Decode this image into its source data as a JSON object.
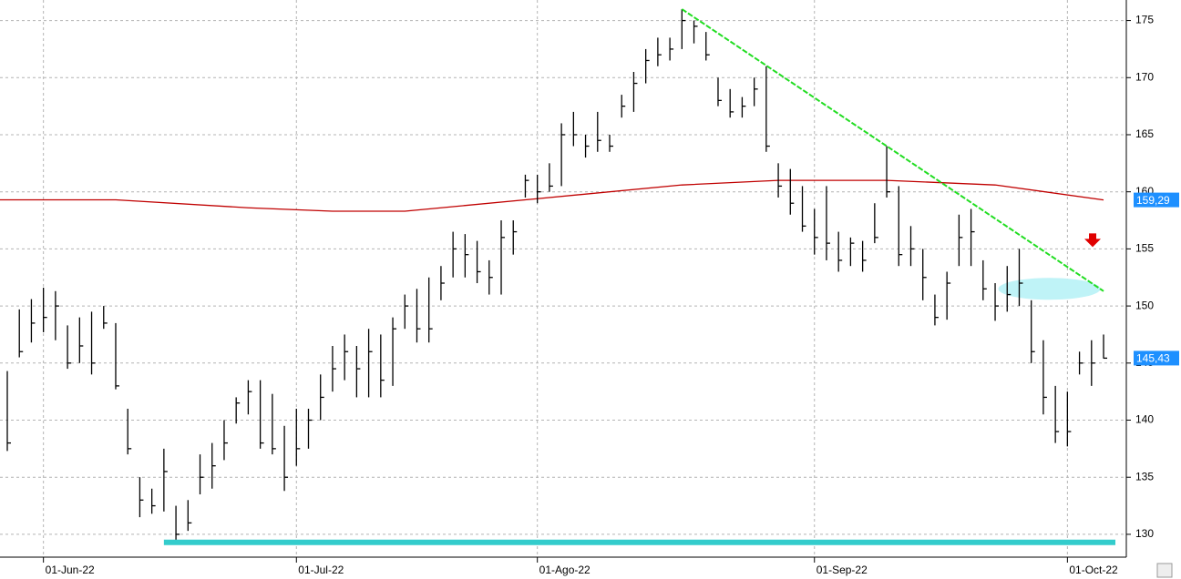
{
  "chart_data": {
    "type": "ohlc",
    "categories": [
      null,
      null,
      null,
      "01-Jun-22",
      null,
      null,
      null,
      null,
      null,
      null,
      null,
      null,
      null,
      null,
      null,
      null,
      null,
      null,
      null,
      null,
      null,
      null,
      null,
      null,
      "01-Jul-22",
      null,
      null,
      null,
      null,
      null,
      null,
      null,
      null,
      null,
      null,
      null,
      null,
      null,
      null,
      null,
      null,
      null,
      null,
      null,
      "01-Ago-22",
      null,
      null,
      null,
      null,
      null,
      null,
      null,
      null,
      null,
      null,
      null,
      null,
      null,
      null,
      null,
      null,
      null,
      null,
      null,
      null,
      null,
      null,
      "01-Sep-22",
      null,
      null,
      null,
      null,
      null,
      null,
      null,
      null,
      null,
      null,
      null,
      null,
      null,
      null,
      null,
      null,
      null,
      null,
      null,
      null,
      "01-Oct-22",
      null,
      null,
      null
    ],
    "high": [
      144.3,
      149.7,
      150.6,
      151.6,
      151.3,
      148.3,
      149,
      149.5,
      150,
      148.5,
      141,
      135,
      134,
      137.5,
      132.5,
      133,
      137,
      138,
      140,
      142,
      143.5,
      143.5,
      142.3,
      139.5,
      141,
      141,
      144,
      146.5,
      147.5,
      146.5,
      148,
      147.5,
      149,
      151,
      151.5,
      152.5,
      153.5,
      156.5,
      156.3,
      155.7,
      154,
      157.5,
      157.5,
      161.5,
      161.5,
      162.5,
      166,
      167,
      165,
      167,
      165,
      168.5,
      170.5,
      172.5,
      173.5,
      173.5,
      176,
      175,
      174,
      170,
      169,
      168.3,
      170,
      171,
      162.5,
      162,
      160.5,
      158.5,
      160.5,
      156.5,
      156,
      155.7,
      159,
      164,
      160.5,
      157,
      155,
      151,
      153,
      158,
      158.5,
      154,
      152,
      153.5,
      155,
      150.5,
      147,
      143,
      142.5,
      146,
      147,
      147.5
    ],
    "low": [
      137.3,
      145.5,
      146.8,
      147.7,
      147,
      144.5,
      145,
      144,
      148,
      142.7,
      137,
      131.5,
      131.8,
      132,
      129.2,
      130.3,
      133.5,
      134,
      136.5,
      139.7,
      140.5,
      137.5,
      137,
      133.8,
      136,
      137.5,
      140,
      142.5,
      143.5,
      142,
      142,
      142,
      143,
      148,
      146.8,
      146.8,
      150.5,
      152.5,
      152.5,
      152,
      151,
      151,
      154.5,
      159.5,
      159,
      160,
      160.5,
      164,
      163,
      163.5,
      163.5,
      166.5,
      167,
      169.5,
      171,
      171.5,
      172.5,
      173,
      171.5,
      167.5,
      166.5,
      166.5,
      167.5,
      163.5,
      159.5,
      158,
      156.5,
      154.5,
      154,
      153,
      153.5,
      153,
      155.5,
      159.5,
      153.5,
      153.5,
      150.5,
      148.3,
      148.8,
      153.5,
      153.5,
      150.5,
      148.7,
      149.5,
      150,
      145,
      140.5,
      138,
      137.7,
      144,
      143,
      145.4
    ],
    "close": [
      138,
      146,
      148.5,
      149,
      150,
      145,
      146.5,
      145,
      148.5,
      143,
      137.5,
      133,
      132.5,
      135.5,
      130,
      131,
      135,
      136,
      138,
      141.5,
      142.5,
      138,
      137.5,
      135,
      137.5,
      140,
      142,
      144.5,
      146,
      144.5,
      146,
      143.5,
      148,
      150,
      148,
      148,
      152,
      155,
      154.5,
      153,
      152.5,
      156,
      156.5,
      161,
      160,
      160.5,
      165,
      165,
      164,
      164.5,
      164,
      167.5,
      169.5,
      171.5,
      172,
      172.5,
      175,
      174.5,
      172,
      168,
      167,
      167.5,
      169,
      164,
      160.5,
      159,
      157,
      156,
      155.5,
      154,
      155.5,
      154,
      156,
      160,
      154.5,
      155,
      152.5,
      149,
      152,
      156,
      156.5,
      151.5,
      150,
      151,
      152,
      146,
      142,
      139,
      139,
      145,
      145,
      145.43
    ],
    "color": "#000000",
    "moving_average": {
      "color": "#c00000",
      "x": [
        0,
        9,
        20,
        27,
        33,
        44,
        56,
        64,
        73,
        82,
        91
      ],
      "values": [
        159.3,
        159.3,
        158.6,
        158.3,
        158.3,
        159.4,
        160.6,
        161,
        161,
        160.6,
        159.29
      ]
    },
    "trendline": {
      "color": "#22dd22",
      "x": [
        56,
        91
      ],
      "values": [
        176,
        151.3
      ]
    },
    "support": {
      "color": "#33cccc",
      "x": [
        13,
        91
      ],
      "values": [
        129.3,
        129.3
      ]
    },
    "price_tags": [
      {
        "value": 159.29,
        "label": "159,29"
      },
      {
        "value": 145.43,
        "label": "145,43"
      }
    ],
    "ylim": [
      128,
      176.8
    ],
    "yticks": [
      130,
      135,
      140,
      145,
      150,
      155,
      160,
      165,
      170,
      175
    ],
    "grid": true
  }
}
